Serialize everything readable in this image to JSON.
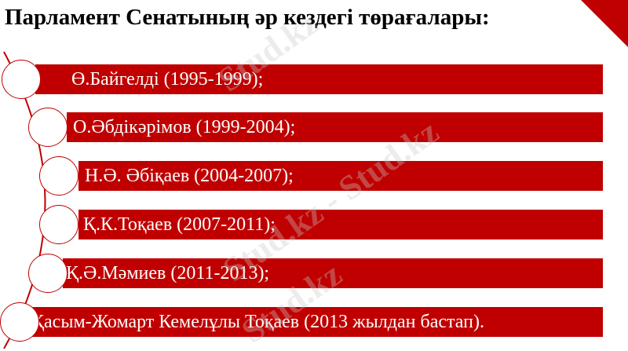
{
  "title": "Парламент Сенатының әр кездегі төрағалары:",
  "accent": "#c00000",
  "items": [
    {
      "label": "Ө.Байгелді (1995-1999);"
    },
    {
      "label": "О.Әбдікәрімов (1999-2004);"
    },
    {
      "label": "Н.Ә. Әбіқаев (2004-2007);"
    },
    {
      "label": "Қ.К.Тоқаев (2007-2011);"
    },
    {
      "label": "Қ.Ә.Мәмиев (2011-2013);"
    },
    {
      "label": "Қасым-Жомарт Кемелұлы Тоқаев (2013 жылдан бастап)."
    }
  ],
  "watermark": "Stud.kz - Stud.kz"
}
